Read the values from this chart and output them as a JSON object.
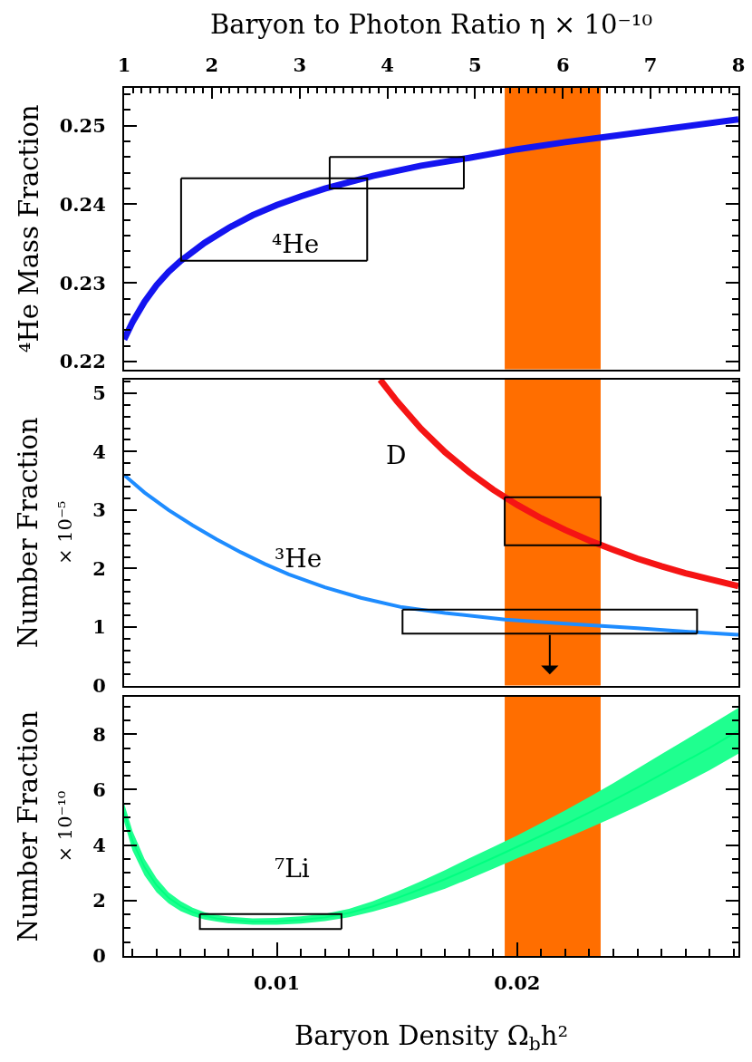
{
  "chart_data": [
    {
      "type": "line",
      "xlim": [
        0.00365,
        0.0292
      ],
      "ylim": [
        0.219,
        0.2548
      ],
      "tick_labels": "y",
      "yticks": [
        0.22,
        {
          "value": 0.222,
          "label": null
        },
        {
          "value": 0.224,
          "label": null
        },
        {
          "value": 0.226,
          "label": null
        },
        {
          "value": 0.228,
          "label": null
        },
        0.23,
        {
          "value": 0.232,
          "label": null
        },
        {
          "value": 0.234,
          "label": null
        },
        {
          "value": 0.236,
          "label": null
        },
        {
          "value": 0.238,
          "label": null
        },
        0.24,
        {
          "value": 0.242,
          "label": null
        },
        {
          "value": 0.244,
          "label": null
        },
        {
          "value": 0.246,
          "label": null
        },
        {
          "value": 0.248,
          "label": null
        },
        0.25,
        {
          "value": 0.252,
          "label": null
        },
        {
          "value": 0.254,
          "label": null
        }
      ],
      "x2lim": [
        1,
        8
      ],
      "x2ticks": [
        1,
        {
          "value": 1.1,
          "label": null
        },
        {
          "value": 1.2,
          "label": null
        },
        {
          "value": 1.3,
          "label": null
        },
        {
          "value": 1.4,
          "label": null
        },
        {
          "value": 1.5,
          "label": null
        },
        {
          "value": 1.6,
          "label": null
        },
        {
          "value": 1.7,
          "label": null
        },
        {
          "value": 1.8,
          "label": null
        },
        {
          "value": 1.9,
          "label": null
        },
        2,
        {
          "value": 2.1,
          "label": null
        },
        {
          "value": 2.2,
          "label": null
        },
        {
          "value": 2.3,
          "label": null
        },
        {
          "value": 2.4,
          "label": null
        },
        {
          "value": 2.5,
          "label": null
        },
        {
          "value": 2.6,
          "label": null
        },
        {
          "value": 2.7,
          "label": null
        },
        {
          "value": 2.8,
          "label": null
        },
        {
          "value": 2.9,
          "label": null
        },
        3,
        {
          "value": 3.1,
          "label": null
        },
        {
          "value": 3.2,
          "label": null
        },
        {
          "value": 3.3,
          "label": null
        },
        {
          "value": 3.4,
          "label": null
        },
        {
          "value": 3.5,
          "label": null
        },
        {
          "value": 3.6,
          "label": null
        },
        {
          "value": 3.7,
          "label": null
        },
        {
          "value": 3.8,
          "label": null
        },
        {
          "value": 3.9,
          "label": null
        },
        4,
        {
          "value": 4.1,
          "label": null
        },
        {
          "value": 4.2,
          "label": null
        },
        {
          "value": 4.3,
          "label": null
        },
        {
          "value": 4.4,
          "label": null
        },
        {
          "value": 4.5,
          "label": null
        },
        {
          "value": 4.6,
          "label": null
        },
        {
          "value": 4.7,
          "label": null
        },
        {
          "value": 4.8,
          "label": null
        },
        {
          "value": 4.9,
          "label": null
        },
        5,
        {
          "value": 5.1,
          "label": null
        },
        {
          "value": 5.2,
          "label": null
        },
        {
          "value": 5.3,
          "label": null
        },
        {
          "value": 5.4,
          "label": null
        },
        {
          "value": 5.5,
          "label": null
        },
        {
          "value": 5.6,
          "label": null
        },
        {
          "value": 5.7,
          "label": null
        },
        {
          "value": 5.8,
          "label": null
        },
        {
          "value": 5.9,
          "label": null
        },
        6,
        {
          "value": 6.1,
          "label": null
        },
        {
          "value": 6.2,
          "label": null
        },
        {
          "value": 6.3,
          "label": null
        },
        {
          "value": 6.4,
          "label": null
        },
        {
          "value": 6.5,
          "label": null
        },
        {
          "value": 6.6,
          "label": null
        },
        {
          "value": 6.7,
          "label": null
        },
        {
          "value": 6.8,
          "label": null
        },
        {
          "value": 6.9,
          "label": null
        },
        7,
        {
          "value": 7.1,
          "label": null
        },
        {
          "value": 7.2,
          "label": null
        },
        {
          "value": 7.3,
          "label": null
        },
        {
          "value": 7.4,
          "label": null
        },
        {
          "value": 7.5,
          "label": null
        },
        {
          "value": 7.6,
          "label": null
        },
        {
          "value": 7.7,
          "label": null
        },
        {
          "value": 7.8,
          "label": null
        },
        {
          "value": 7.9,
          "label": null
        },
        8
      ],
      "x2label": "Baryon to Photon Ratio η × 10⁻¹⁰",
      "ylabel": "⁴He Mass Fraction",
      "bands": [
        {
          "axis": "x",
          "from": 0.01948,
          "to": 0.02347,
          "color": "#ff6e00"
        }
      ],
      "series": [
        {
          "color": "#1414f0",
          "x": [
            0.00365,
            0.004,
            0.0045,
            0.005,
            0.0055,
            0.006,
            0.007,
            0.008,
            0.009,
            0.01,
            0.011,
            0.012,
            0.013,
            0.014,
            0.016,
            0.018,
            0.02,
            0.022,
            0.024,
            0.026,
            0.0292
          ],
          "values": [
            0.2228,
            0.225,
            0.2276,
            0.2297,
            0.2314,
            0.2328,
            0.2351,
            0.237,
            0.2386,
            0.2399,
            0.241,
            0.242,
            0.2428,
            0.2436,
            0.2449,
            0.2459,
            0.247,
            0.2479,
            0.2487,
            0.2495,
            0.2508
          ]
        },
        {
          "color": "#000000",
          "x": [
            0.00602,
            0.00602,
            0.01376
          ],
          "values": [
            0.2433,
            0.2328,
            0.2328
          ]
        },
        {
          "color": "#000000",
          "x": [
            0.00602,
            0.01376,
            0.01376
          ],
          "values": [
            0.2433,
            0.2433,
            0.2328
          ]
        },
        {
          "color": "#000000",
          "x": [
            0.0122,
            0.0122,
            0.01778
          ],
          "values": [
            0.246,
            0.242,
            0.242
          ]
        },
        {
          "color": "#000000",
          "x": [
            0.0122,
            0.01778,
            0.01778
          ],
          "values": [
            0.246,
            0.246,
            0.242
          ]
        }
      ],
      "annotations": [
        "⁴He"
      ]
    },
    {
      "type": "line",
      "xlim": [
        0.00365,
        0.0292
      ],
      "ylim": [
        0,
        5.23
      ],
      "tick_labels": "y",
      "yticks": [
        0,
        {
          "value": 0.2,
          "label": null
        },
        {
          "value": 0.4,
          "label": null
        },
        {
          "value": 0.6,
          "label": null
        },
        {
          "value": 0.8,
          "label": null
        },
        1,
        {
          "value": 1.2,
          "label": null
        },
        {
          "value": 1.4,
          "label": null
        },
        {
          "value": 1.6,
          "label": null
        },
        {
          "value": 1.8,
          "label": null
        },
        2,
        {
          "value": 2.2,
          "label": null
        },
        {
          "value": 2.4,
          "label": null
        },
        {
          "value": 2.6,
          "label": null
        },
        {
          "value": 2.8,
          "label": null
        },
        3,
        {
          "value": 3.2,
          "label": null
        },
        {
          "value": 3.4,
          "label": null
        },
        {
          "value": 3.6,
          "label": null
        },
        {
          "value": 3.8,
          "label": null
        },
        4,
        {
          "value": 4.2,
          "label": null
        },
        {
          "value": 4.4,
          "label": null
        },
        {
          "value": 4.6,
          "label": null
        },
        {
          "value": 4.8,
          "label": null
        },
        5,
        {
          "value": 5.2,
          "label": null
        }
      ],
      "ylabel": "Number Fraction\n× 10⁻⁵",
      "bands": [
        {
          "axis": "x",
          "from": 0.01948,
          "to": 0.02347,
          "color": "#ff6e00"
        }
      ],
      "series": [
        {
          "color": "#f51414",
          "x": [
            0.0143,
            0.015,
            0.016,
            0.017,
            0.018,
            0.019,
            0.02,
            0.021,
            0.022,
            0.023,
            0.024,
            0.025,
            0.026,
            0.027,
            0.028,
            0.0292
          ],
          "values": [
            5.23,
            4.86,
            4.39,
            3.99,
            3.65,
            3.35,
            3.09,
            2.86,
            2.66,
            2.48,
            2.32,
            2.17,
            2.04,
            1.92,
            1.82,
            1.7
          ]
        },
        {
          "color": "#1e8cff",
          "x": [
            0.00365,
            0.0045,
            0.0055,
            0.0065,
            0.0075,
            0.0085,
            0.0095,
            0.0105,
            0.012,
            0.0135,
            0.0152,
            0.017,
            0.0195,
            0.022,
            0.0235,
            0.025,
            0.0275,
            0.0292
          ],
          "values": [
            3.6,
            3.3,
            3.0,
            2.74,
            2.5,
            2.28,
            2.08,
            1.9,
            1.68,
            1.5,
            1.34,
            1.24,
            1.13,
            1.06,
            1.02,
            0.98,
            0.91,
            0.87
          ]
        },
        {
          "color": "#000000",
          "x": [
            0.01948,
            0.01948,
            0.02347
          ],
          "values": [
            3.22,
            2.4,
            2.4
          ]
        },
        {
          "color": "#000000",
          "x": [
            0.01948,
            0.02347,
            0.02347
          ],
          "values": [
            3.22,
            3.22,
            2.4
          ]
        },
        {
          "color": "#000000",
          "x": [
            0.01523,
            0.01523,
            0.02748
          ],
          "values": [
            1.3,
            0.89,
            0.89
          ]
        },
        {
          "color": "#000000",
          "x": [
            0.01523,
            0.02748,
            0.02748
          ],
          "values": [
            1.3,
            1.3,
            0.89
          ]
        }
      ],
      "annotations": [
        "D",
        "³He"
      ]
    },
    {
      "type": "line",
      "xlim": [
        0.00365,
        0.0292
      ],
      "ylim": [
        0,
        9.35
      ],
      "xticks": [
        {
          "value": 0.004,
          "label": null
        },
        {
          "value": 0.005,
          "label": null
        },
        {
          "value": 0.006,
          "label": null
        },
        {
          "value": 0.007,
          "label": null
        },
        {
          "value": 0.008,
          "label": null
        },
        {
          "value": 0.009,
          "label": null
        },
        0.01,
        {
          "value": 0.011,
          "label": null
        },
        {
          "value": 0.012,
          "label": null
        },
        {
          "value": 0.013,
          "label": null
        },
        {
          "value": 0.014,
          "label": null
        },
        {
          "value": 0.015,
          "label": null
        },
        {
          "value": 0.016,
          "label": null
        },
        {
          "value": 0.017,
          "label": null
        },
        {
          "value": 0.018,
          "label": null
        },
        {
          "value": 0.019,
          "label": null
        },
        0.02,
        {
          "value": 0.021,
          "label": null
        },
        {
          "value": 0.022,
          "label": null
        },
        {
          "value": 0.023,
          "label": null
        },
        {
          "value": 0.024,
          "label": null
        },
        {
          "value": 0.025,
          "label": null
        },
        {
          "value": 0.026,
          "label": null
        },
        {
          "value": 0.027,
          "label": null
        },
        {
          "value": 0.028,
          "label": null
        },
        {
          "value": 0.029,
          "label": null
        }
      ],
      "yticks": [
        0,
        {
          "value": 0.5,
          "label": null
        },
        {
          "value": 1,
          "label": null
        },
        {
          "value": 1.5,
          "label": null
        },
        2,
        {
          "value": 2.5,
          "label": null
        },
        {
          "value": 3,
          "label": null
        },
        {
          "value": 3.5,
          "label": null
        },
        4,
        {
          "value": 4.5,
          "label": null
        },
        {
          "value": 5,
          "label": null
        },
        {
          "value": 5.5,
          "label": null
        },
        6,
        {
          "value": 6.5,
          "label": null
        },
        {
          "value": 7,
          "label": null
        },
        {
          "value": 7.5,
          "label": null
        },
        8,
        {
          "value": 8.5,
          "label": null
        },
        {
          "value": 9,
          "label": null
        }
      ],
      "xlabel": "Baryon Density Ω$_{b}$h²",
      "ylabel": "Number Fraction\n× 10⁻¹⁰",
      "bands": [
        {
          "axis": "x",
          "from": 0.01948,
          "to": 0.02347,
          "color": "#ff6e00"
        }
      ],
      "series": [
        {
          "color": "#00ff80",
          "x": [
            0.00365,
            0.004,
            0.0045,
            0.005,
            0.0055,
            0.006,
            0.0065,
            0.007,
            0.0075,
            0.008,
            0.009,
            0.01,
            0.011,
            0.012,
            0.013,
            0.014,
            0.015,
            0.016,
            0.017,
            0.018,
            0.019,
            0.02,
            0.021,
            0.022,
            0.023,
            0.024,
            0.025,
            0.026,
            0.027,
            0.028,
            0.0292
          ],
          "values": [
            5.18,
            4.15,
            3.2,
            2.55,
            2.1,
            1.8,
            1.59,
            1.45,
            1.36,
            1.3,
            1.24,
            1.25,
            1.3,
            1.39,
            1.55,
            1.79,
            2.09,
            2.42,
            2.77,
            3.15,
            3.54,
            3.94,
            4.34,
            4.75,
            5.18,
            5.62,
            6.08,
            6.55,
            7.03,
            7.51,
            8.13
          ],
          "upper": [
            5.5,
            4.5,
            3.5,
            2.8,
            2.3,
            1.98,
            1.74,
            1.58,
            1.48,
            1.42,
            1.36,
            1.37,
            1.43,
            1.52,
            1.7,
            1.98,
            2.32,
            2.7,
            3.1,
            3.52,
            3.93,
            4.35,
            4.8,
            5.26,
            5.74,
            6.24,
            6.76,
            7.28,
            7.8,
            8.32,
            8.95
          ],
          "lower": [
            4.85,
            3.8,
            2.9,
            2.3,
            1.9,
            1.62,
            1.44,
            1.32,
            1.24,
            1.18,
            1.13,
            1.13,
            1.17,
            1.26,
            1.4,
            1.6,
            1.85,
            2.13,
            2.43,
            2.78,
            3.15,
            3.52,
            3.88,
            4.24,
            4.62,
            5.0,
            5.4,
            5.82,
            6.25,
            6.7,
            7.3
          ]
        },
        {
          "color": "#000000",
          "x": [
            0.0068,
            0.0068,
            0.01269
          ],
          "values": [
            1.51,
            0.97,
            0.97
          ]
        },
        {
          "color": "#000000",
          "x": [
            0.0068,
            0.01269,
            0.01269
          ],
          "values": [
            1.51,
            1.51,
            0.97
          ]
        }
      ],
      "annotations": [
        "⁷Li"
      ]
    }
  ]
}
